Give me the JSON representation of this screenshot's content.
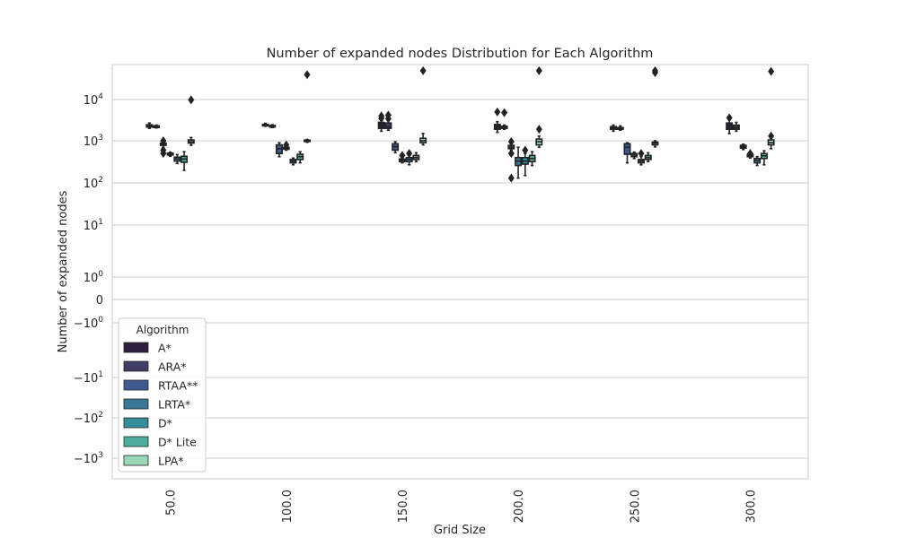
{
  "chart_data": {
    "type": "box",
    "title": "Number of expanded nodes Distribution for Each Algorithm",
    "xlabel": "Grid Size",
    "ylabel": "Number of expanded nodes",
    "yscale": "symlog",
    "grid": "horizontal",
    "categories": [
      "50.0",
      "100.0",
      "150.0",
      "200.0",
      "250.0",
      "300.0"
    ],
    "y_ticks": [
      {
        "base": "−10",
        "exp": "3",
        "value": -1000
      },
      {
        "base": "−10",
        "exp": "2",
        "value": -100
      },
      {
        "base": "−10",
        "exp": "1",
        "value": -10
      },
      {
        "base": "−10",
        "exp": "0",
        "value": -1
      },
      {
        "base": "0",
        "exp": "",
        "value": 0
      },
      {
        "base": "10",
        "exp": "0",
        "value": 1
      },
      {
        "base": "10",
        "exp": "1",
        "value": 10
      },
      {
        "base": "10",
        "exp": "2",
        "value": 100
      },
      {
        "base": "10",
        "exp": "3",
        "value": 1000
      },
      {
        "base": "10",
        "exp": "4",
        "value": 10000
      }
    ],
    "legend": {
      "title": "Algorithm",
      "placement": "lower-left",
      "entries": [
        {
          "name": "A*",
          "color": "#2c1e3d"
        },
        {
          "name": "ARA*",
          "color": "#403e67"
        },
        {
          "name": "RTAA**",
          "color": "#3e5a8f"
        },
        {
          "name": "LRTA*",
          "color": "#3a7696"
        },
        {
          "name": "D*",
          "color": "#358e9c"
        },
        {
          "name": "D* Lite",
          "color": "#4dad9e"
        },
        {
          "name": "LPA*",
          "color": "#9bd8b8"
        }
      ]
    },
    "series": [
      {
        "name": "A*",
        "boxes": [
          {
            "min": 2000,
            "q1": 2150,
            "med": 2300,
            "q3": 2450,
            "max": 2700,
            "outliers": []
          },
          {
            "min": 2250,
            "q1": 2300,
            "med": 2400,
            "q3": 2500,
            "max": 2650,
            "outliers": []
          },
          {
            "min": 1700,
            "q1": 2000,
            "med": 2300,
            "q3": 2800,
            "max": 3300,
            "outliers": [
              3500,
              4000
            ]
          },
          {
            "min": 1600,
            "q1": 1900,
            "med": 2200,
            "q3": 2500,
            "max": 2900,
            "outliers": [
              5000
            ]
          },
          {
            "min": 1700,
            "q1": 1900,
            "med": 2000,
            "q3": 2200,
            "max": 2400,
            "outliers": []
          },
          {
            "min": 1500,
            "q1": 1900,
            "med": 2300,
            "q3": 2700,
            "max": 3200,
            "outliers": [
              3600
            ]
          }
        ]
      },
      {
        "name": "ARA*",
        "boxes": [
          {
            "min": 2050,
            "q1": 2100,
            "med": 2200,
            "q3": 2300,
            "max": 2400,
            "outliers": []
          },
          {
            "min": 2100,
            "q1": 2150,
            "med": 2250,
            "q3": 2350,
            "max": 2450,
            "outliers": []
          },
          {
            "min": 1800,
            "q1": 2000,
            "med": 2200,
            "q3": 2700,
            "max": 3200,
            "outliers": [
              3400,
              4200
            ]
          },
          {
            "min": 1900,
            "q1": 2000,
            "med": 2100,
            "q3": 2250,
            "max": 2400,
            "outliers": [
              4800
            ]
          },
          {
            "min": 1800,
            "q1": 1900,
            "med": 2000,
            "q3": 2100,
            "max": 2300,
            "outliers": []
          },
          {
            "min": 1700,
            "q1": 1900,
            "med": 2100,
            "q3": 2400,
            "max": 2800,
            "outliers": []
          }
        ]
      },
      {
        "name": "RTAA**",
        "boxes": [
          {
            "min": 700,
            "q1": 780,
            "med": 830,
            "q3": 880,
            "max": 950,
            "outliers": [
              500,
              600,
              1000
            ]
          },
          {
            "min": 420,
            "q1": 500,
            "med": 650,
            "q3": 800,
            "max": 900,
            "outliers": []
          },
          {
            "min": 520,
            "q1": 600,
            "med": 720,
            "q3": 850,
            "max": 950,
            "outliers": []
          },
          {
            "min": 600,
            "q1": 650,
            "med": 700,
            "q3": 780,
            "max": 850,
            "outliers": [
              500,
              950,
              130
            ]
          },
          {
            "min": 300,
            "q1": 480,
            "med": 700,
            "q3": 850,
            "max": 900,
            "outliers": []
          },
          {
            "min": 620,
            "q1": 670,
            "med": 720,
            "q3": 780,
            "max": 830,
            "outliers": []
          }
        ]
      },
      {
        "name": "LRTA*",
        "boxes": [
          {
            "min": 430,
            "q1": 460,
            "med": 490,
            "q3": 510,
            "max": 540,
            "outliers": []
          },
          {
            "min": 600,
            "q1": 630,
            "med": 670,
            "q3": 700,
            "max": 740,
            "outliers": [
              800
            ]
          },
          {
            "min": 300,
            "q1": 320,
            "med": 350,
            "q3": 370,
            "max": 400,
            "outliers": [
              450
            ]
          },
          {
            "min": 130,
            "q1": 260,
            "med": 330,
            "q3": 400,
            "max": 700,
            "outliers": []
          },
          {
            "min": 380,
            "q1": 420,
            "med": 460,
            "q3": 500,
            "max": 540,
            "outliers": []
          },
          {
            "min": 390,
            "q1": 420,
            "med": 450,
            "q3": 470,
            "max": 500,
            "outliers": [
              500
            ]
          }
        ]
      },
      {
        "name": "D*",
        "boxes": [
          {
            "min": 290,
            "q1": 330,
            "med": 370,
            "q3": 410,
            "max": 470,
            "outliers": []
          },
          {
            "min": 270,
            "q1": 300,
            "med": 330,
            "q3": 360,
            "max": 390,
            "outliers": []
          },
          {
            "min": 270,
            "q1": 320,
            "med": 360,
            "q3": 400,
            "max": 450,
            "outliers": [
              500
            ]
          },
          {
            "min": 150,
            "q1": 280,
            "med": 330,
            "q3": 400,
            "max": 500,
            "outliers": [
              600
            ]
          },
          {
            "min": 270,
            "q1": 300,
            "med": 330,
            "q3": 360,
            "max": 420,
            "outliers": [
              500
            ]
          },
          {
            "min": 260,
            "q1": 300,
            "med": 340,
            "q3": 380,
            "max": 420,
            "outliers": []
          }
        ]
      },
      {
        "name": "D* Lite",
        "boxes": [
          {
            "min": 200,
            "q1": 310,
            "med": 370,
            "q3": 430,
            "max": 550,
            "outliers": []
          },
          {
            "min": 300,
            "q1": 360,
            "med": 420,
            "q3": 480,
            "max": 550,
            "outliers": []
          },
          {
            "min": 320,
            "q1": 360,
            "med": 400,
            "q3": 450,
            "max": 520,
            "outliers": []
          },
          {
            "min": 260,
            "q1": 320,
            "med": 380,
            "q3": 450,
            "max": 550,
            "outliers": []
          },
          {
            "min": 320,
            "q1": 360,
            "med": 400,
            "q3": 450,
            "max": 520,
            "outliers": []
          },
          {
            "min": 270,
            "q1": 380,
            "med": 440,
            "q3": 500,
            "max": 580,
            "outliers": []
          }
        ]
      },
      {
        "name": "LPA*",
        "boxes": [
          {
            "min": 780,
            "q1": 880,
            "med": 950,
            "q3": 1050,
            "max": 1200,
            "outliers": [
              9800
            ]
          },
          {
            "min": 920,
            "q1": 960,
            "med": 1000,
            "q3": 1040,
            "max": 1080,
            "outliers": [
              40000
            ]
          },
          {
            "min": 800,
            "q1": 900,
            "med": 1000,
            "q3": 1150,
            "max": 1500,
            "outliers": [
              50000
            ]
          },
          {
            "min": 700,
            "q1": 800,
            "med": 950,
            "q3": 1100,
            "max": 1300,
            "outliers": [
              1900,
              50000
            ]
          },
          {
            "min": 720,
            "q1": 800,
            "med": 870,
            "q3": 930,
            "max": 1000,
            "outliers": [
              45000,
              50000
            ]
          },
          {
            "min": 650,
            "q1": 800,
            "med": 900,
            "q3": 1050,
            "max": 1200,
            "outliers": [
              1300,
              48000
            ]
          }
        ]
      }
    ]
  }
}
